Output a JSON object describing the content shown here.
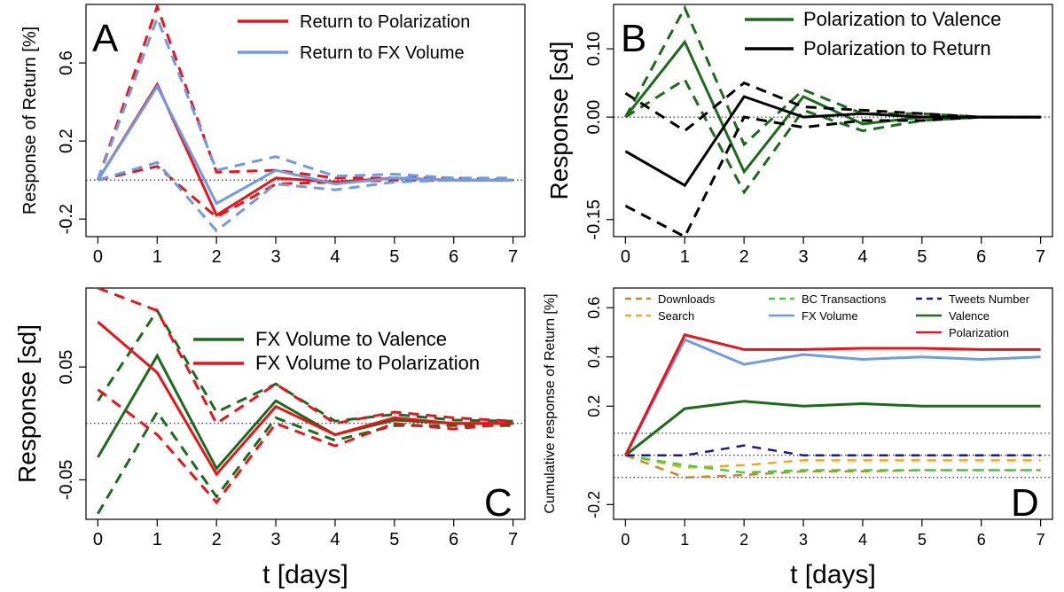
{
  "chart_data": [
    {
      "panel": "A",
      "type": "line",
      "x": [
        0,
        1,
        2,
        3,
        4,
        5,
        6,
        7
      ],
      "xticks": [
        "0",
        "1",
        "2",
        "3",
        "4",
        "5",
        "6",
        "7"
      ],
      "xlim": [
        -0.2,
        7.2
      ],
      "ylim": [
        -0.29,
        0.9
      ],
      "yticks": [
        "-0.2",
        "0.2",
        "0.6"
      ],
      "ytick_values": [
        -0.2,
        0.2,
        0.6
      ],
      "xlabel": "",
      "ylabel": "Response of Return [%]",
      "grid": false,
      "zero_line": true,
      "legend_position": "top-right",
      "series": [
        {
          "name": "Return to Polarization",
          "color": "#e8141b",
          "values": [
            0,
            0.49,
            -0.18,
            0.01,
            -0.01,
            0.01,
            0,
            0
          ],
          "lower": [
            0,
            0.07,
            -0.19,
            -0.02,
            -0.01,
            0,
            0,
            0
          ],
          "upper": [
            0,
            0.89,
            0.04,
            0.05,
            0.01,
            0.01,
            0.01,
            0
          ]
        },
        {
          "name": "Return to FX Volume",
          "color": "#6f9be3",
          "values": [
            0,
            0.48,
            -0.12,
            0.05,
            -0.02,
            0.01,
            0,
            0
          ],
          "lower": [
            0,
            0.09,
            -0.26,
            -0.02,
            -0.05,
            -0.01,
            0,
            0
          ],
          "upper": [
            0,
            0.83,
            0.05,
            0.12,
            0.02,
            0.03,
            0.01,
            0.01
          ]
        }
      ]
    },
    {
      "panel": "B",
      "type": "line",
      "x": [
        0,
        1,
        2,
        3,
        4,
        5,
        6,
        7
      ],
      "xticks": [
        "0",
        "1",
        "2",
        "3",
        "4",
        "5",
        "6",
        "7"
      ],
      "xlim": [
        -0.2,
        7.2
      ],
      "ylim": [
        -0.175,
        0.165
      ],
      "yticks": [
        "-0.15",
        "0.00",
        "0.10"
      ],
      "ytick_values": [
        -0.15,
        0.0,
        0.1
      ],
      "xlabel": "",
      "ylabel": "Response [sd]",
      "grid": false,
      "zero_line": true,
      "legend_position": "top-right",
      "series": [
        {
          "name": "Polarization to Valence",
          "color": "#1b6b1b",
          "values": [
            0,
            0.11,
            -0.08,
            0.03,
            -0.01,
            0,
            0,
            0
          ],
          "lower": [
            0,
            0.055,
            -0.11,
            0.01,
            -0.02,
            -0.005,
            0,
            0
          ],
          "upper": [
            0,
            0.16,
            -0.04,
            0.04,
            0.005,
            0.005,
            0,
            0
          ]
        },
        {
          "name": "Polarization to Return",
          "color": "#000000",
          "values": [
            -0.05,
            -0.1,
            0.03,
            0,
            0.005,
            0,
            0,
            0
          ],
          "lower": [
            -0.13,
            -0.175,
            0,
            -0.015,
            -0.005,
            -0.005,
            0,
            0
          ],
          "upper": [
            0.035,
            -0.02,
            0.05,
            0.015,
            0.01,
            0.005,
            0,
            0
          ]
        }
      ]
    },
    {
      "panel": "C",
      "type": "line",
      "x": [
        0,
        1,
        2,
        3,
        4,
        5,
        6,
        7
      ],
      "xticks": [
        "0",
        "1",
        "2",
        "3",
        "4",
        "5",
        "6",
        "7"
      ],
      "xlim": [
        -0.2,
        7.2
      ],
      "ylim": [
        -0.085,
        0.12
      ],
      "yticks": [
        "-0.05",
        "0.05"
      ],
      "ytick_values": [
        -0.05,
        0.05
      ],
      "xlabel": "t [days]",
      "ylabel": "Response [sd]",
      "grid": false,
      "zero_line": true,
      "legend_position": "top-right",
      "series": [
        {
          "name": "FX Volume to Valence",
          "color": "#1b6b1b",
          "values": [
            -0.03,
            0.06,
            -0.04,
            0.02,
            -0.01,
            0.003,
            0,
            0
          ],
          "lower": [
            -0.08,
            0.01,
            -0.065,
            0.005,
            -0.015,
            -0.002,
            -0.002,
            -0.002
          ],
          "upper": [
            0.02,
            0.1,
            0.01,
            0.035,
            0.002,
            0.008,
            0.003,
            0.002
          ]
        },
        {
          "name": "FX Volume to Polarization",
          "color": "#e8141b",
          "values": [
            0.09,
            0.045,
            -0.045,
            0.015,
            -0.01,
            0.005,
            0,
            0
          ],
          "lower": [
            0.03,
            -0.01,
            -0.07,
            0,
            -0.02,
            0,
            -0.005,
            0
          ],
          "upper": [
            0.12,
            0.1,
            0,
            0.035,
            0,
            0.01,
            0.005,
            0.002
          ]
        }
      ]
    },
    {
      "panel": "D",
      "type": "line",
      "x": [
        0,
        1,
        2,
        3,
        4,
        5,
        6,
        7
      ],
      "xticks": [
        "0",
        "1",
        "2",
        "3",
        "4",
        "5",
        "6",
        "7"
      ],
      "xlim": [
        -0.2,
        7.2
      ],
      "ylim": [
        -0.26,
        0.68
      ],
      "yticks": [
        "-0.2",
        "0.2",
        "0.4",
        "0.6"
      ],
      "ytick_values": [
        -0.2,
        0.2,
        0.4,
        0.6
      ],
      "xlabel": "t [days]",
      "ylabel": "Cumulative response of Return [%]",
      "grid": false,
      "zero_line": true,
      "reference_lines": [
        0.09,
        -0.09
      ],
      "legend_position": "top",
      "series": [
        {
          "name": "Downloads",
          "color": "#c8862e",
          "dashed": true,
          "values": [
            0,
            -0.09,
            -0.08,
            -0.065,
            -0.065,
            -0.06,
            -0.06,
            -0.06
          ]
        },
        {
          "name": "Search",
          "color": "#f5a623",
          "dashed": true,
          "values": [
            0,
            -0.05,
            -0.04,
            -0.02,
            -0.02,
            -0.02,
            -0.02,
            -0.02
          ]
        },
        {
          "name": "BC Transactions",
          "color": "#3cd43c",
          "dashed": true,
          "values": [
            0,
            -0.04,
            -0.07,
            -0.06,
            -0.06,
            -0.06,
            -0.06,
            -0.06
          ]
        },
        {
          "name": "FX Volume",
          "color": "#6f9be3",
          "dashed": false,
          "values": [
            0,
            0.47,
            0.37,
            0.41,
            0.39,
            0.4,
            0.39,
            0.4
          ]
        },
        {
          "name": "Tweets Number",
          "color": "#1a1a8c",
          "dashed": true,
          "values": [
            0,
            0,
            0.04,
            0,
            0,
            0,
            0,
            0
          ]
        },
        {
          "name": "Valence",
          "color": "#1b6b1b",
          "dashed": false,
          "values": [
            0,
            0.19,
            0.22,
            0.2,
            0.21,
            0.2,
            0.2,
            0.2
          ]
        },
        {
          "name": "Polarization",
          "color": "#e8141b",
          "dashed": false,
          "values": [
            0,
            0.49,
            0.43,
            0.43,
            0.435,
            0.435,
            0.43,
            0.43
          ]
        }
      ]
    }
  ]
}
